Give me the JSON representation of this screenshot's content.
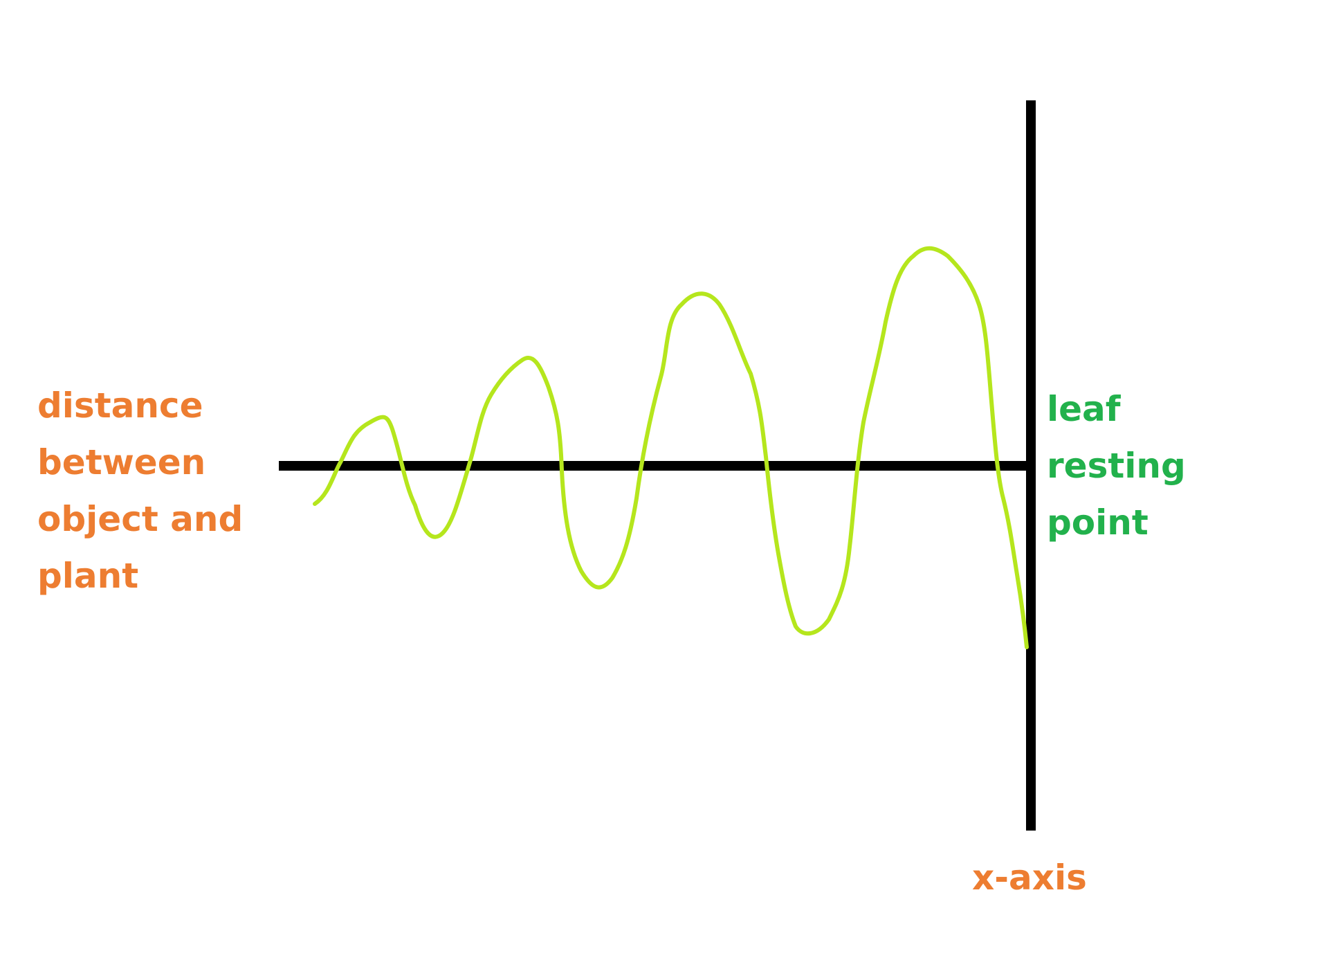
{
  "labels": {
    "left": [
      "distance",
      "between",
      "object and",
      "plant"
    ],
    "right": [
      "leaf",
      "resting",
      "point"
    ],
    "axis": "x-axis"
  },
  "colors": {
    "axis_line": "#000000",
    "wave": "#B5E61D",
    "orange_text": "#ED7D31",
    "green_text": "#22B14C"
  }
}
